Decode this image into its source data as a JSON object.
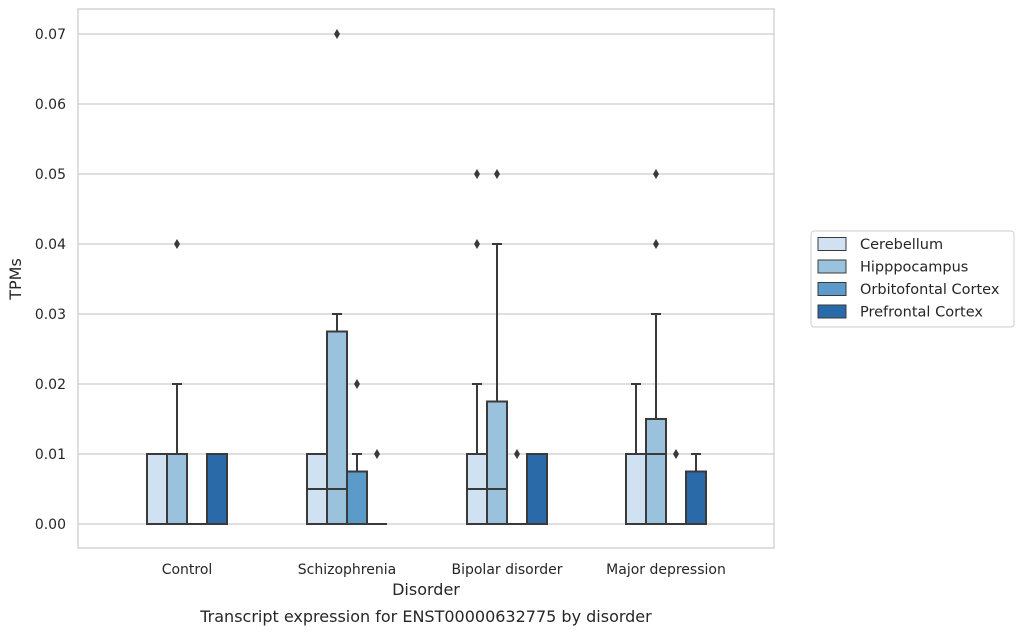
{
  "chart_data": {
    "type": "boxplot",
    "caption": "Transcript expression for ENST00000632775 by disorder",
    "xlabel": "Disorder",
    "ylabel": "TPMs",
    "ylim": [
      -0.0034,
      0.0735
    ],
    "yticks": [
      0.0,
      0.01,
      0.02,
      0.03,
      0.04,
      0.05,
      0.06,
      0.07
    ],
    "ytick_labels": [
      "0.00",
      "0.01",
      "0.02",
      "0.03",
      "0.04",
      "0.05",
      "0.06",
      "0.07"
    ],
    "grid": "horizontal",
    "legend_position": "right",
    "categories": [
      "Control",
      "Schizophrenia",
      "Bipolar disorder",
      "Major depression"
    ],
    "series": [
      {
        "name": "Cerebellum",
        "color": "#d0e1f2",
        "boxes": [
          {
            "q1": 0.0,
            "median": 0.0,
            "q3": 0.01,
            "whislo": 0.0,
            "whishi": 0.01,
            "fliers": []
          },
          {
            "q1": 0.0,
            "median": 0.005,
            "q3": 0.01,
            "whislo": 0.0,
            "whishi": 0.01,
            "fliers": []
          },
          {
            "q1": 0.0,
            "median": 0.005,
            "q3": 0.01,
            "whislo": 0.0,
            "whishi": 0.02,
            "fliers": [
              0.04,
              0.05
            ]
          },
          {
            "q1": 0.0,
            "median": 0.0,
            "q3": 0.01,
            "whislo": 0.0,
            "whishi": 0.02,
            "fliers": []
          }
        ]
      },
      {
        "name": "Hipppocampus",
        "color": "#9ac2dd",
        "boxes": [
          {
            "q1": 0.0,
            "median": 0.0,
            "q3": 0.01,
            "whislo": 0.0,
            "whishi": 0.02,
            "fliers": [
              0.04
            ]
          },
          {
            "q1": 0.0,
            "median": 0.005,
            "q3": 0.0275,
            "whislo": 0.0,
            "whishi": 0.03,
            "fliers": [
              0.07
            ]
          },
          {
            "q1": 0.0,
            "median": 0.005,
            "q3": 0.0175,
            "whislo": 0.0,
            "whishi": 0.04,
            "fliers": [
              0.05
            ]
          },
          {
            "q1": 0.0,
            "median": 0.01,
            "q3": 0.015,
            "whislo": 0.0,
            "whishi": 0.03,
            "fliers": [
              0.04,
              0.05
            ]
          }
        ]
      },
      {
        "name": "Orbitofontal Cortex",
        "color": "#5b9bc9",
        "boxes": [
          {
            "q1": 0.0,
            "median": 0.0,
            "q3": 0.0,
            "whislo": 0.0,
            "whishi": 0.0,
            "fliers": []
          },
          {
            "q1": 0.0,
            "median": 0.0,
            "q3": 0.0075,
            "whislo": 0.0,
            "whishi": 0.01,
            "fliers": [
              0.02
            ]
          },
          {
            "q1": 0.0,
            "median": 0.0,
            "q3": 0.0,
            "whislo": 0.0,
            "whishi": 0.0,
            "fliers": [
              0.01
            ]
          },
          {
            "q1": 0.0,
            "median": 0.0,
            "q3": 0.0,
            "whislo": 0.0,
            "whishi": 0.0,
            "fliers": [
              0.01
            ]
          }
        ]
      },
      {
        "name": "Prefrontal Cortex",
        "color": "#2b6aa8",
        "boxes": [
          {
            "q1": 0.0,
            "median": 0.0,
            "q3": 0.01,
            "whislo": 0.0,
            "whishi": 0.01,
            "fliers": []
          },
          {
            "q1": 0.0,
            "median": 0.0,
            "q3": 0.0,
            "whislo": 0.0,
            "whishi": 0.0,
            "fliers": [
              0.01
            ]
          },
          {
            "q1": 0.0,
            "median": 0.0,
            "q3": 0.01,
            "whislo": 0.0,
            "whishi": 0.01,
            "fliers": []
          },
          {
            "q1": 0.0,
            "median": 0.0,
            "q3": 0.0075,
            "whislo": 0.0,
            "whishi": 0.01,
            "fliers": []
          }
        ]
      }
    ]
  }
}
